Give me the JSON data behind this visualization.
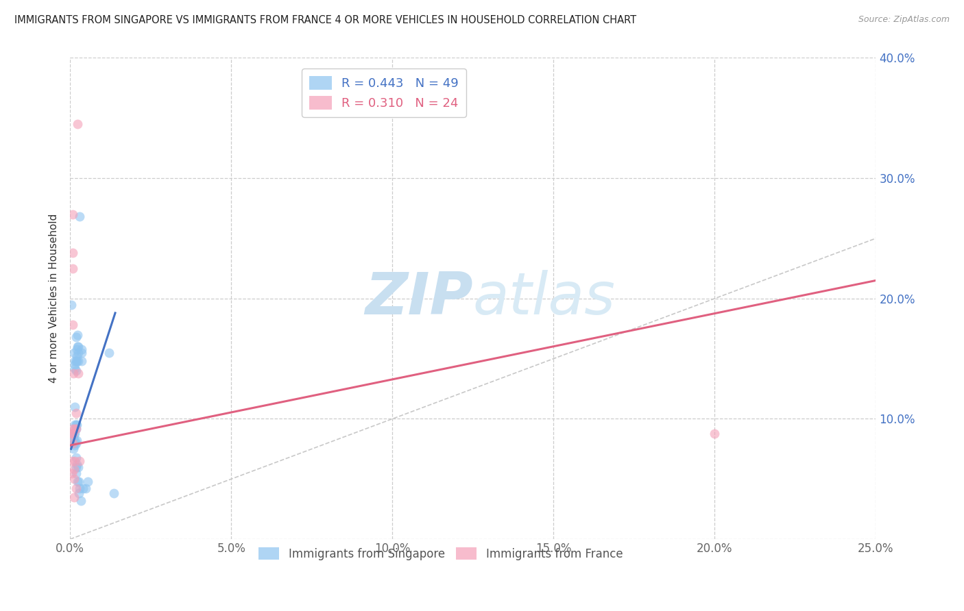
{
  "title": "IMMIGRANTS FROM SINGAPORE VS IMMIGRANTS FROM FRANCE 4 OR MORE VEHICLES IN HOUSEHOLD CORRELATION CHART",
  "source": "Source: ZipAtlas.com",
  "ylabel": "4 or more Vehicles in Household",
  "xlabel": "",
  "legend_label_1": "Immigrants from Singapore",
  "legend_label_2": "Immigrants from France",
  "R1": 0.443,
  "N1": 49,
  "R2": 0.31,
  "N2": 24,
  "color1": "#8EC4F0",
  "color2": "#F4A0B8",
  "trendline1_color": "#4472C4",
  "trendline2_color": "#E06080",
  "diag_color": "#C8C8C8",
  "xlim": [
    0.0,
    0.25
  ],
  "ylim": [
    0.0,
    0.4
  ],
  "xticks": [
    0.0,
    0.05,
    0.1,
    0.15,
    0.2,
    0.25
  ],
  "yticks": [
    0.0,
    0.1,
    0.2,
    0.3,
    0.4
  ],
  "background_color": "#FFFFFF",
  "watermark_zip": "ZIP",
  "watermark_atlas": "atlas",
  "watermark_color": "#C8DFF0",
  "singapore_points": [
    [
      0.0004,
      0.195
    ],
    [
      0.001,
      0.085
    ],
    [
      0.001,
      0.075
    ],
    [
      0.0013,
      0.155
    ],
    [
      0.0013,
      0.088
    ],
    [
      0.0013,
      0.08
    ],
    [
      0.0015,
      0.148
    ],
    [
      0.0015,
      0.145
    ],
    [
      0.0015,
      0.142
    ],
    [
      0.0015,
      0.11
    ],
    [
      0.0015,
      0.095
    ],
    [
      0.0015,
      0.088
    ],
    [
      0.0015,
      0.082
    ],
    [
      0.0015,
      0.078
    ],
    [
      0.0018,
      0.168
    ],
    [
      0.0018,
      0.148
    ],
    [
      0.0018,
      0.14
    ],
    [
      0.0018,
      0.095
    ],
    [
      0.0018,
      0.092
    ],
    [
      0.0018,
      0.08
    ],
    [
      0.0018,
      0.068
    ],
    [
      0.0018,
      0.06
    ],
    [
      0.0018,
      0.055
    ],
    [
      0.002,
      0.158
    ],
    [
      0.002,
      0.152
    ],
    [
      0.002,
      0.148
    ],
    [
      0.002,
      0.095
    ],
    [
      0.002,
      0.082
    ],
    [
      0.002,
      0.062
    ],
    [
      0.0023,
      0.17
    ],
    [
      0.0023,
      0.16
    ],
    [
      0.0023,
      0.048
    ],
    [
      0.0025,
      0.16
    ],
    [
      0.0025,
      0.155
    ],
    [
      0.0025,
      0.148
    ],
    [
      0.0025,
      0.06
    ],
    [
      0.0028,
      0.048
    ],
    [
      0.0028,
      0.038
    ],
    [
      0.003,
      0.268
    ],
    [
      0.003,
      0.042
    ],
    [
      0.0033,
      0.032
    ],
    [
      0.0035,
      0.155
    ],
    [
      0.0035,
      0.148
    ],
    [
      0.0035,
      0.158
    ],
    [
      0.004,
      0.042
    ],
    [
      0.0048,
      0.042
    ],
    [
      0.0055,
      0.048
    ],
    [
      0.012,
      0.155
    ],
    [
      0.0135,
      0.038
    ]
  ],
  "france_points": [
    [
      0.0003,
      0.088
    ],
    [
      0.0005,
      0.088
    ],
    [
      0.0005,
      0.065
    ],
    [
      0.0005,
      0.055
    ],
    [
      0.0008,
      0.27
    ],
    [
      0.0008,
      0.238
    ],
    [
      0.0008,
      0.225
    ],
    [
      0.0008,
      0.178
    ],
    [
      0.0008,
      0.092
    ],
    [
      0.0008,
      0.088
    ],
    [
      0.0008,
      0.08
    ],
    [
      0.001,
      0.138
    ],
    [
      0.0013,
      0.058
    ],
    [
      0.0013,
      0.05
    ],
    [
      0.0013,
      0.035
    ],
    [
      0.0015,
      0.092
    ],
    [
      0.0015,
      0.065
    ],
    [
      0.0018,
      0.105
    ],
    [
      0.0018,
      0.092
    ],
    [
      0.0018,
      0.042
    ],
    [
      0.0022,
      0.345
    ],
    [
      0.0025,
      0.138
    ],
    [
      0.003,
      0.065
    ],
    [
      0.2,
      0.088
    ]
  ],
  "trendline1_x": [
    0.0003,
    0.014
  ],
  "trendline1_y": [
    0.075,
    0.188
  ],
  "trendline2_x": [
    0.0,
    0.25
  ],
  "trendline2_y": [
    0.078,
    0.215
  ],
  "diag_line_x": [
    0.0,
    0.25
  ],
  "diag_line_y": [
    0.0,
    0.25
  ]
}
